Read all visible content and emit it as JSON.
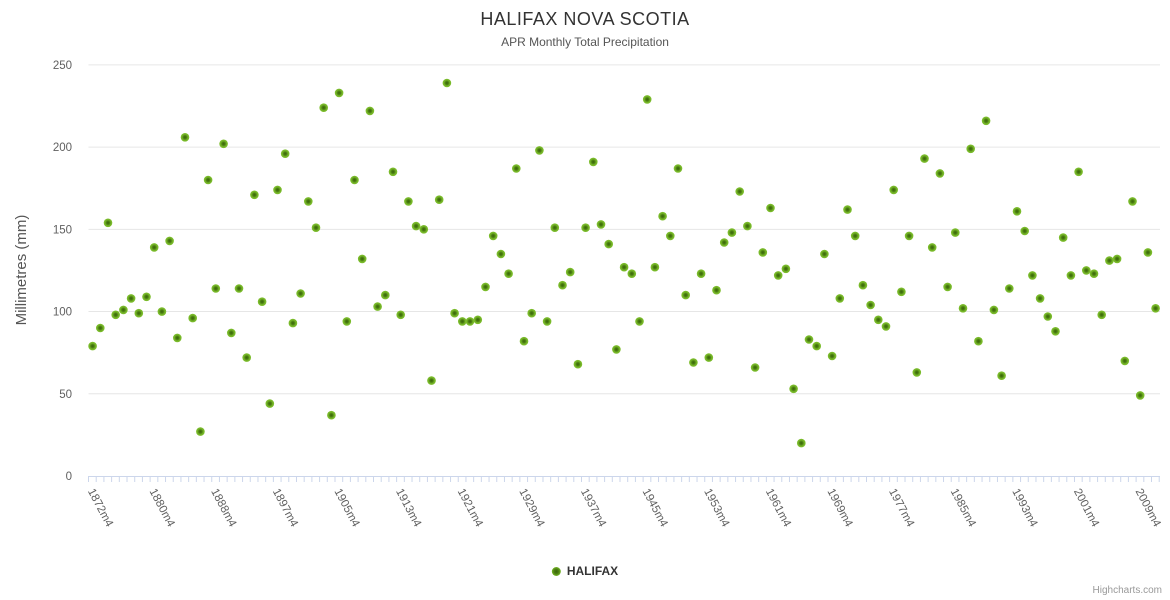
{
  "header": {
    "title": "HALIFAX NOVA SCOTIA",
    "subtitle": "APR Monthly Total Precipitation"
  },
  "legend": {
    "series_label": "HALIFAX"
  },
  "credits": "Highcharts.com",
  "colors": {
    "point_outer": "#7fc02e",
    "point_core": "#386409",
    "grid_line": "#e6e6e6",
    "axis_line": "#ccd6eb",
    "tick_label": "#606060",
    "title_text": "#333333",
    "subtitle_text": "#555555"
  },
  "chart_data": {
    "type": "scatter",
    "title": "HALIFAX NOVA SCOTIA",
    "subtitle": "APR Monthly Total Precipitation",
    "xlabel": "",
    "ylabel": "Millimetres (mm)",
    "ylim": [
      0,
      250
    ],
    "yticks": [
      0,
      50,
      100,
      150,
      200,
      250
    ],
    "grid": "horizontal",
    "legend_position": "bottom-center",
    "x_tick_indices": [
      0,
      8,
      16,
      24,
      32,
      40,
      48,
      56,
      64,
      72,
      80,
      88,
      96,
      104,
      112,
      120,
      128,
      136
    ],
    "x_tick_labels": [
      "1872m4",
      "1880m4",
      "1888m4",
      "1897m4",
      "1905m4",
      "1913m4",
      "1921m4",
      "1929m4",
      "1937m4",
      "1945m4",
      "1953m4",
      "1961m4",
      "1969m4",
      "1977m4",
      "1985m4",
      "1993m4",
      "2001m4",
      "2009m4"
    ],
    "series": [
      {
        "name": "HALIFAX",
        "x": [
          1872,
          1873,
          1874,
          1875,
          1876,
          1877,
          1878,
          1879,
          1880,
          1881,
          1882,
          1883,
          1884,
          1885,
          1886,
          1887,
          1888,
          1889,
          1890,
          1891,
          1892,
          1893,
          1894,
          1895,
          1897,
          1898,
          1899,
          1900,
          1901,
          1902,
          1903,
          1904,
          1905,
          1906,
          1907,
          1908,
          1909,
          1910,
          1911,
          1912,
          1913,
          1914,
          1915,
          1916,
          1917,
          1918,
          1919,
          1920,
          1921,
          1922,
          1923,
          1924,
          1925,
          1926,
          1927,
          1928,
          1929,
          1930,
          1931,
          1932,
          1933,
          1934,
          1935,
          1936,
          1937,
          1938,
          1939,
          1940,
          1941,
          1942,
          1943,
          1944,
          1945,
          1946,
          1947,
          1948,
          1949,
          1950,
          1951,
          1952,
          1953,
          1954,
          1955,
          1956,
          1957,
          1958,
          1959,
          1960,
          1961,
          1962,
          1963,
          1964,
          1965,
          1966,
          1967,
          1968,
          1969,
          1970,
          1971,
          1972,
          1973,
          1974,
          1975,
          1976,
          1977,
          1978,
          1979,
          1980,
          1981,
          1982,
          1983,
          1984,
          1985,
          1986,
          1987,
          1988,
          1989,
          1990,
          1991,
          1992,
          1993,
          1994,
          1995,
          1996,
          1997,
          1998,
          1999,
          2000,
          2001,
          2002,
          2003,
          2004,
          2005,
          2006,
          2007,
          2008,
          2009,
          2010,
          2011
        ],
        "values": [
          79,
          90,
          154,
          98,
          101,
          108,
          99,
          109,
          139,
          100,
          143,
          84,
          206,
          96,
          27,
          180,
          114,
          202,
          87,
          114,
          72,
          171,
          106,
          44,
          174,
          196,
          93,
          111,
          167,
          151,
          224,
          37,
          233,
          94,
          180,
          132,
          222,
          103,
          110,
          185,
          98,
          167,
          152,
          150,
          58,
          168,
          239,
          99,
          94,
          94,
          95,
          115,
          146,
          135,
          123,
          187,
          82,
          99,
          198,
          94,
          151,
          116,
          124,
          68,
          151,
          191,
          153,
          141,
          77,
          127,
          123,
          94,
          229,
          127,
          158,
          146,
          187,
          110,
          69,
          123,
          72,
          113,
          142,
          148,
          173,
          152,
          66,
          136,
          163,
          122,
          126,
          53,
          20,
          83,
          79,
          135,
          73,
          108,
          162,
          146,
          116,
          104,
          95,
          91,
          174,
          112,
          146,
          63,
          193,
          139,
          184,
          115,
          148,
          102,
          199,
          82,
          216,
          101,
          61,
          114,
          161,
          149,
          122,
          108,
          97,
          88,
          145,
          122,
          185,
          125,
          123,
          98,
          131,
          132,
          70,
          167,
          49,
          136,
          102
        ]
      }
    ]
  }
}
